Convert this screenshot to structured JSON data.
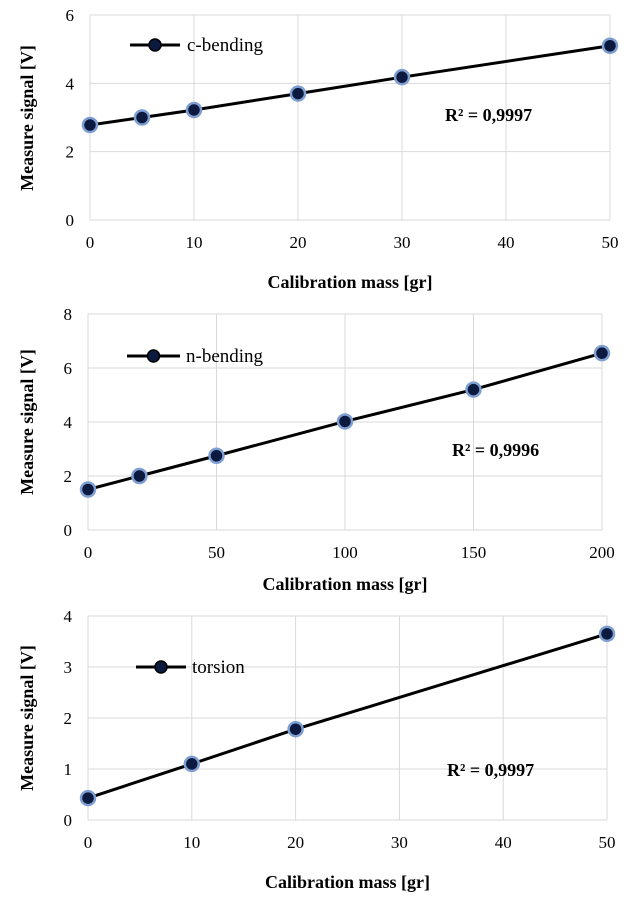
{
  "chart_data": [
    {
      "type": "line",
      "xlabel": "Calibration mass [gr]",
      "ylabel": "Measure signal [V]",
      "xlim": [
        0,
        50
      ],
      "ylim": [
        0,
        6
      ],
      "xticks": [
        0,
        10,
        20,
        30,
        40,
        50
      ],
      "yticks": [
        0,
        2,
        4,
        6
      ],
      "grid": true,
      "legend": "top-left",
      "annotation": "R² = 0,9997",
      "series": [
        {
          "name": "c-bending",
          "x": [
            0,
            5,
            10,
            20,
            30,
            50
          ],
          "y": [
            2.78,
            3.0,
            3.22,
            3.7,
            4.18,
            5.1
          ]
        }
      ]
    },
    {
      "type": "line",
      "xlabel": "Calibration mass [gr]",
      "ylabel": "Measure signal [V]",
      "xlim": [
        0,
        200
      ],
      "ylim": [
        0,
        8
      ],
      "xticks": [
        0,
        50,
        100,
        150,
        200
      ],
      "yticks": [
        0,
        2,
        4,
        6,
        8
      ],
      "grid": true,
      "legend": "top-left",
      "annotation": "R² = 0,9996",
      "series": [
        {
          "name": "n-bending",
          "x": [
            0,
            20,
            50,
            100,
            150,
            200
          ],
          "y": [
            1.5,
            2.0,
            2.75,
            4.02,
            5.2,
            6.55
          ]
        }
      ]
    },
    {
      "type": "line",
      "xlabel": "Calibration mass [gr]",
      "ylabel": "Measure signal [V]",
      "xlim": [
        0,
        50
      ],
      "ylim": [
        0,
        4
      ],
      "xticks": [
        0,
        10,
        20,
        30,
        40,
        50
      ],
      "yticks": [
        0,
        1,
        2,
        3,
        4
      ],
      "grid": true,
      "legend": "top-left",
      "annotation": "R² = 0,9997",
      "series": [
        {
          "name": "torsion",
          "x": [
            0,
            10,
            20,
            50
          ],
          "y": [
            0.43,
            1.1,
            1.78,
            3.65
          ]
        }
      ]
    }
  ],
  "colors": {
    "line": "#000000",
    "marker_fill": "#0d1a40",
    "marker_edge": "#7f9ed1",
    "grid": "#d9d9d9"
  }
}
